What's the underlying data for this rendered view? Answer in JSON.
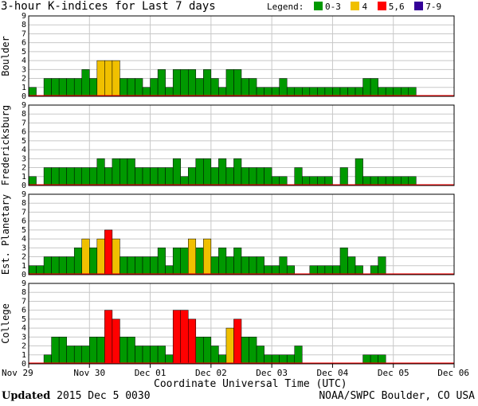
{
  "header": {
    "title": "3-hour K-indices for Last 7 days",
    "legend_label": "Legend:",
    "legend": [
      {
        "label": "0-3",
        "color": "#009900"
      },
      {
        "label": "4",
        "color": "#f0c000"
      },
      {
        "label": "5,6",
        "color": "#ff0000"
      },
      {
        "label": "7-9",
        "color": "#330099"
      }
    ]
  },
  "footer": {
    "updated_label": "Updated",
    "updated_time": "2015 Dec  5 0030",
    "source": "NOAA/SWPC Boulder, CO USA"
  },
  "chart_data": {
    "type": "bar",
    "title": "3-hour K-indices for Last 7 days",
    "xlabel": "Coordinate Universal Time (UTC)",
    "x_tick_labels": [
      "Nov 29",
      "Nov 30",
      "Dec 01",
      "Dec 02",
      "Dec 03",
      "Dec 04",
      "Dec 05",
      "Dec 06"
    ],
    "ylim": [
      0,
      9
    ],
    "y_tick_labels": [
      "0",
      "1",
      "2",
      "3",
      "4",
      "5",
      "6",
      "7",
      "8",
      "9"
    ],
    "grid": true,
    "color_scale": [
      {
        "range": "0-3",
        "color": "#009900"
      },
      {
        "range": "4",
        "color": "#f0c000"
      },
      {
        "range": "5,6",
        "color": "#ff0000"
      },
      {
        "range": "7-9",
        "color": "#330099"
      }
    ],
    "series": [
      {
        "name": "Boulder",
        "values": [
          1,
          0,
          2,
          2,
          2,
          2,
          2,
          3,
          2,
          4,
          4,
          4,
          2,
          2,
          2,
          1,
          2,
          3,
          1,
          3,
          3,
          3,
          2,
          3,
          2,
          1,
          3,
          3,
          2,
          2,
          1,
          1,
          1,
          2,
          1,
          1,
          1,
          1,
          1,
          1,
          1,
          1,
          1,
          1,
          2,
          2,
          1,
          1,
          1,
          1,
          1,
          0,
          0,
          0,
          0,
          0,
          0,
          0,
          0
        ]
      },
      {
        "name": "Fredericksburg",
        "values": [
          1,
          0,
          2,
          2,
          2,
          2,
          2,
          2,
          2,
          3,
          2,
          3,
          3,
          3,
          2,
          2,
          2,
          2,
          2,
          3,
          1,
          2,
          3,
          3,
          2,
          3,
          2,
          3,
          2,
          2,
          2,
          2,
          1,
          1,
          0,
          2,
          1,
          1,
          1,
          1,
          0,
          2,
          0,
          3,
          1,
          1,
          1,
          1,
          1,
          1,
          1,
          0,
          0,
          0,
          0,
          0,
          0,
          0,
          0
        ]
      },
      {
        "name": "Est. Planetary",
        "values": [
          1,
          1,
          2,
          2,
          2,
          2,
          3,
          4,
          3,
          4,
          5,
          4,
          2,
          2,
          2,
          2,
          2,
          3,
          1,
          3,
          3,
          4,
          3,
          4,
          2,
          3,
          2,
          3,
          2,
          2,
          2,
          1,
          1,
          2,
          1,
          0,
          0,
          1,
          1,
          1,
          1,
          3,
          2,
          1,
          0,
          1,
          2,
          0,
          0,
          0,
          0,
          0,
          0,
          0,
          0,
          0,
          0,
          0,
          0
        ]
      },
      {
        "name": "College",
        "values": [
          0,
          0,
          1,
          3,
          3,
          2,
          2,
          2,
          3,
          3,
          6,
          5,
          3,
          3,
          2,
          2,
          2,
          2,
          1,
          6,
          6,
          5,
          3,
          3,
          2,
          1,
          4,
          5,
          3,
          3,
          2,
          1,
          1,
          1,
          1,
          2,
          0,
          0,
          0,
          0,
          0,
          0,
          0,
          0,
          1,
          1,
          1,
          0,
          0,
          0,
          0,
          0,
          0,
          0,
          0,
          0,
          0,
          0,
          0
        ]
      }
    ]
  }
}
